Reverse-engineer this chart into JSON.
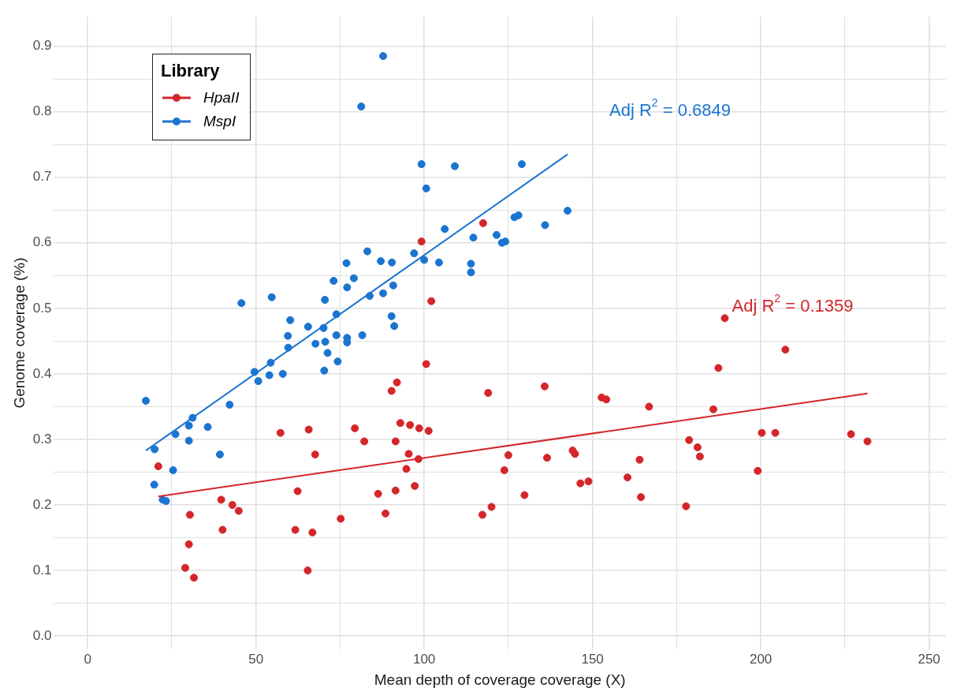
{
  "chart_data": {
    "type": "scatter",
    "xlabel": "Mean depth of coverage coverage (X)",
    "ylabel": "Genome coverage (%)",
    "legend_title": "Library",
    "legend": "top left",
    "grid": true,
    "xlim": [
      -10,
      255
    ],
    "ylim": [
      -0.02,
      0.945
    ],
    "xticks": [
      0,
      {
        "value": 25,
        "label": null
      },
      50,
      {
        "value": 75,
        "label": null
      },
      100,
      {
        "value": 125,
        "label": null
      },
      150,
      {
        "value": 175,
        "label": null
      },
      200,
      {
        "value": 225,
        "label": null
      },
      250
    ],
    "yticks": [
      {
        "value": 0,
        "label": "0.0"
      },
      {
        "value": 0.05,
        "label": null
      },
      0.1,
      {
        "value": 0.15,
        "label": null
      },
      0.2,
      {
        "value": 0.25,
        "label": null
      },
      0.3,
      {
        "value": 0.35,
        "label": null
      },
      0.4,
      {
        "value": 0.45,
        "label": null
      },
      0.5,
      {
        "value": 0.55,
        "label": null
      },
      0.6,
      {
        "value": 0.65,
        "label": null
      },
      0.7,
      {
        "value": 0.75,
        "label": null
      },
      0.8,
      {
        "value": 0.85,
        "label": null
      },
      0.9
    ],
    "series": [
      {
        "name": "HpaII",
        "color": "#d4262b",
        "marker": "circle",
        "x": [
          21,
          30.4,
          30.1,
          29,
          31.6,
          39.7,
          40.1,
          43,
          44.9,
          57.3,
          62.4,
          61.7,
          65.7,
          67.6,
          66.8,
          65.4,
          75.2,
          79.4,
          82.2,
          86.3,
          88.5,
          90.3,
          91.9,
          91.5,
          94.7,
          91.5,
          92.9,
          95.4,
          95.8,
          98.5,
          97.2,
          98.3,
          101.3,
          100.6,
          102.1,
          99.2,
          117.5,
          119,
          125,
          123.8,
          129.8,
          120,
          117.3,
          135.8,
          136.5,
          144.1,
          144.8,
          146.4,
          148.8,
          152.7,
          154.1,
          160.4,
          164,
          164.4,
          166.8,
          177.8,
          178.7,
          181.2,
          181.9,
          185.9,
          187.4,
          189.3,
          199.1,
          200.3,
          204.3,
          207.3,
          226.8,
          231.7
        ],
        "values": [
          0.259,
          0.185,
          0.14,
          0.104,
          0.089,
          0.208,
          0.162,
          0.2,
          0.191,
          0.31,
          0.221,
          0.162,
          0.315,
          0.277,
          0.158,
          0.1,
          0.179,
          0.317,
          0.297,
          0.217,
          0.187,
          0.374,
          0.387,
          0.297,
          0.255,
          0.222,
          0.325,
          0.278,
          0.322,
          0.317,
          0.229,
          0.27,
          0.313,
          0.415,
          0.511,
          0.602,
          0.63,
          0.371,
          0.276,
          0.253,
          0.215,
          0.197,
          0.185,
          0.381,
          0.272,
          0.283,
          0.278,
          0.233,
          0.236,
          0.364,
          0.361,
          0.242,
          0.269,
          0.212,
          0.35,
          0.198,
          0.299,
          0.288,
          0.274,
          0.346,
          0.409,
          0.485,
          0.252,
          0.31,
          0.31,
          0.437,
          0.308,
          0.297
        ]
      },
      {
        "name": "MspI",
        "color": "#1b74d0",
        "marker": "circle",
        "x": [
          17.3,
          19.9,
          19.8,
          22.3,
          23.3,
          25.4,
          26.1,
          30.1,
          30.1,
          31.2,
          35.7,
          39.3,
          42.2,
          45.7,
          49.6,
          50.7,
          54,
          54.4,
          54.7,
          58,
          59.6,
          59.5,
          60.2,
          65.5,
          67.7,
          70.3,
          70.6,
          70.1,
          70.5,
          71.3,
          73.1,
          73.9,
          73.9,
          74.3,
          76.9,
          77.1,
          77.1,
          77.1,
          79.1,
          81.6,
          83.1,
          83.8,
          87.1,
          87.8,
          90.4,
          90.8,
          90.3,
          91.1,
          97,
          100,
          104.4,
          87.8,
          81.3,
          99.2,
          109.1,
          129,
          100.6,
          142.6,
          135.9,
          126.8,
          128,
          106.1,
          114.6,
          121.5,
          123.1,
          124.1,
          113.9,
          113.9
        ],
        "values": [
          0.359,
          0.285,
          0.231,
          0.208,
          0.206,
          0.253,
          0.308,
          0.321,
          0.298,
          0.333,
          0.319,
          0.277,
          0.353,
          0.508,
          0.403,
          0.389,
          0.398,
          0.417,
          0.517,
          0.4,
          0.44,
          0.458,
          0.482,
          0.472,
          0.446,
          0.405,
          0.449,
          0.47,
          0.513,
          0.432,
          0.542,
          0.491,
          0.459,
          0.419,
          0.569,
          0.532,
          0.455,
          0.448,
          0.546,
          0.459,
          0.587,
          0.519,
          0.572,
          0.523,
          0.57,
          0.535,
          0.488,
          0.473,
          0.584,
          0.574,
          0.57,
          0.885,
          0.808,
          0.72,
          0.717,
          0.72,
          0.683,
          0.649,
          0.627,
          0.639,
          0.642,
          0.621,
          0.608,
          0.612,
          0.6,
          0.602,
          0.568,
          0.555
        ]
      },
      {
        "type": "line",
        "color": "#d4262b",
        "x": [
          21,
          231.7
        ],
        "values": [
          0.213,
          0.37
        ]
      },
      {
        "type": "line",
        "color": "#1b74d0",
        "x": [
          17.3,
          142.6
        ],
        "values": [
          0.283,
          0.735
        ]
      }
    ],
    "annotations": [
      "Adj R$^{2}$ = 0.1359",
      "Adj R$^{2}$ = 0.6849"
    ]
  }
}
